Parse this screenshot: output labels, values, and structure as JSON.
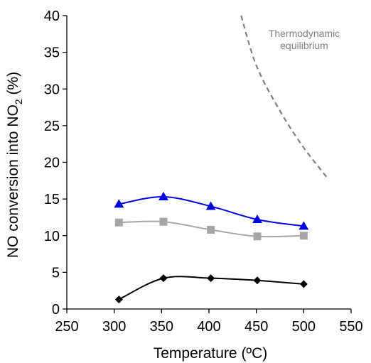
{
  "chart_data": {
    "type": "line",
    "xlabel": "Temperature (ºC)",
    "ylabel_main": "NO conversion into NO",
    "ylabel_sub": "2",
    "ylabel_tail": " (%)",
    "xlim": [
      250,
      550
    ],
    "ylim": [
      0,
      40
    ],
    "xticks": [
      250,
      300,
      350,
      400,
      450,
      500,
      550
    ],
    "yticks": [
      0,
      5,
      10,
      15,
      20,
      25,
      30,
      35,
      40
    ],
    "grid": false,
    "legend": "none",
    "series": [
      {
        "marker": "triangle",
        "color": "#0000e0",
        "x": [
          305,
          352,
          402,
          451,
          500
        ],
        "y": [
          14.3,
          15.3,
          14.0,
          12.2,
          11.3
        ]
      },
      {
        "marker": "square",
        "color": "#a6a6a6",
        "x": [
          305,
          352,
          402,
          451,
          500
        ],
        "y": [
          11.8,
          11.9,
          10.8,
          9.9,
          10.0
        ]
      },
      {
        "marker": "diamond",
        "color": "#000000",
        "x": [
          305,
          352,
          402,
          451,
          500
        ],
        "y": [
          1.3,
          4.2,
          4.2,
          3.9,
          3.4
        ]
      }
    ],
    "equilibrium": {
      "line_style": "dashed",
      "color": "#808080",
      "x": [
        434,
        450,
        475,
        500,
        526
      ],
      "y": [
        40,
        33.2,
        27.0,
        22.0,
        17.7
      ]
    },
    "annotation": {
      "line1": "Thermodynamic",
      "line2": "equilibrium"
    }
  }
}
